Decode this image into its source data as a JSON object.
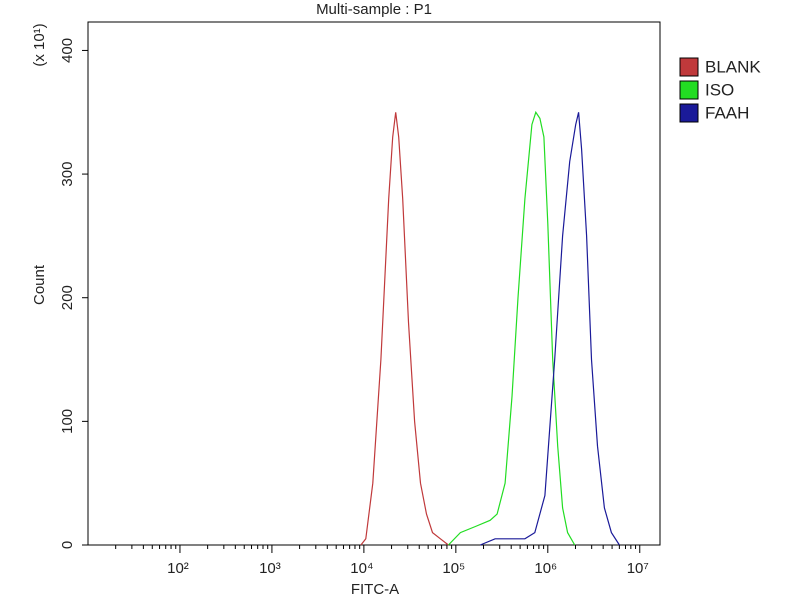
{
  "chart_data": {
    "type": "line",
    "title": "Multi-sample : P1",
    "x_label": "FITC-A",
    "y_label": "Count",
    "y_scale_note": "(x 10¹)",
    "xscale": "log",
    "xlim": [
      10,
      16600000
    ],
    "ylim": [
      0,
      423
    ],
    "xticks": [
      {
        "value": 100,
        "label": "10²"
      },
      {
        "value": 1000,
        "label": "10³"
      },
      {
        "value": 10000,
        "label": "10⁴"
      },
      {
        "value": 100000,
        "label": "10⁵"
      },
      {
        "value": 1000000,
        "label": "10⁶"
      },
      {
        "value": 10000000,
        "label": "10⁷"
      }
    ],
    "yticks": [
      0,
      100,
      200,
      300,
      400
    ],
    "legend": "right",
    "series": [
      {
        "name": "BLANK",
        "color": "#c0393b",
        "x": [
          9290,
          10500,
          12500,
          15300,
          18600,
          20600,
          22200,
          23900,
          26400,
          30600,
          35600,
          41300,
          48000,
          55700,
          68000,
          83000
        ],
        "values": [
          0,
          5,
          50,
          150,
          280,
          330,
          350,
          330,
          280,
          180,
          100,
          50,
          25,
          10,
          5,
          0
        ]
      },
      {
        "name": "ISO",
        "color": "#22dd22",
        "x": [
          83000,
          112000,
          163000,
          236000,
          281000,
          343000,
          408000,
          474000,
          564000,
          671000,
          741000,
          820000,
          906000,
          1000000,
          1130000,
          1280000,
          1450000,
          1640000,
          1960000
        ],
        "values": [
          0,
          10,
          15,
          20,
          25,
          50,
          120,
          200,
          280,
          340,
          350,
          345,
          330,
          260,
          150,
          80,
          30,
          10,
          0
        ]
      },
      {
        "name": "FAAH",
        "color": "#1a1a99",
        "x": [
          184000,
          267000,
          564000,
          722000,
          929000,
          1190000,
          1450000,
          1730000,
          2010000,
          2160000,
          2330000,
          2640000,
          2990000,
          3470000,
          4130000,
          4920000,
          6000000
        ],
        "values": [
          0,
          5,
          5,
          10,
          40,
          150,
          250,
          310,
          340,
          350,
          320,
          250,
          150,
          80,
          30,
          10,
          0
        ]
      }
    ]
  }
}
